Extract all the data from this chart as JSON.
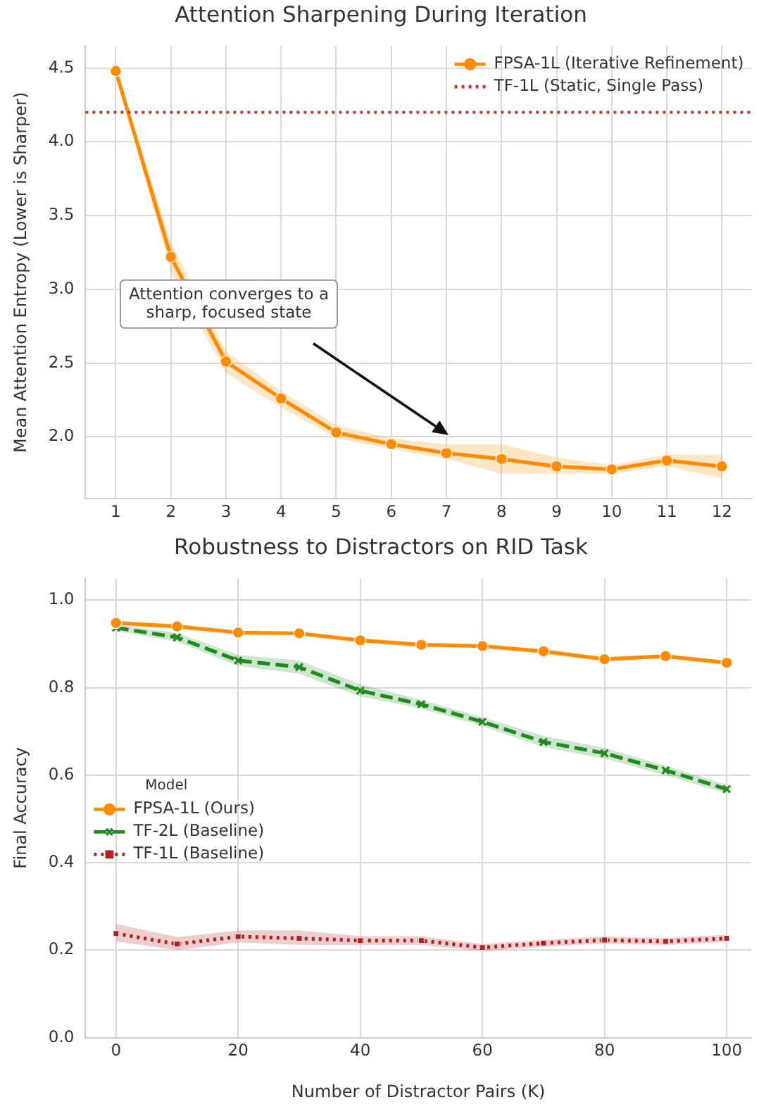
{
  "chart_data": [
    {
      "type": "line",
      "title": "Attention Sharpening During Iteration",
      "ylabel": "Mean Attention Entropy (Lower is Sharper)",
      "x": [
        1,
        2,
        3,
        4,
        5,
        6,
        7,
        8,
        9,
        10,
        11,
        12
      ],
      "xlim": [
        0.45,
        12.55
      ],
      "xticks": [
        1,
        2,
        3,
        4,
        5,
        6,
        7,
        8,
        9,
        10,
        11,
        12
      ],
      "ylim": [
        1.58,
        4.65
      ],
      "yticks": [
        {
          "value": 2,
          "label": "2.0"
        },
        2.5,
        {
          "value": 3,
          "label": "3.0"
        },
        3.5,
        {
          "value": 4,
          "label": "4.0"
        },
        4.5
      ],
      "series": [
        {
          "name": "FPSA-1L (Iterative Refinement)",
          "color": "#ff8c00",
          "marker": "circle",
          "line_style": "solid",
          "values": [
            4.48,
            3.22,
            2.51,
            2.26,
            2.03,
            1.95,
            1.89,
            1.85,
            1.8,
            1.78,
            1.84,
            1.8
          ],
          "lower": [
            4.47,
            3.12,
            2.43,
            2.2,
            1.99,
            1.92,
            1.85,
            1.75,
            1.75,
            1.75,
            1.8,
            1.72
          ],
          "upper": [
            4.49,
            3.32,
            2.58,
            2.31,
            2.08,
            1.99,
            1.95,
            1.95,
            1.86,
            1.81,
            1.88,
            1.88
          ]
        }
      ],
      "ref_lines": [
        {
          "axis": "y",
          "value": 4.2,
          "label": "TF-1L (Static, Single Pass)",
          "color": "#c0392b",
          "line_style": "dotted"
        }
      ],
      "annotations": [
        "Attention converges to a\nsharp, focused state"
      ],
      "legend": "top right",
      "grid": true
    },
    {
      "type": "line",
      "title": "Robustness to Distractors on RID Task",
      "xlabel": "Number of Distractor Pairs (K)",
      "ylabel": "Final Accuracy",
      "legend_title": "Model",
      "x": [
        0,
        10,
        20,
        30,
        40,
        50,
        60,
        70,
        80,
        90,
        100
      ],
      "xlim": [
        -5,
        104
      ],
      "xticks": [
        0,
        20,
        40,
        60,
        80,
        100
      ],
      "ylim": [
        0,
        1.05
      ],
      "yticks": [
        {
          "value": 0,
          "label": "0.0"
        },
        0.2,
        0.4,
        0.6,
        0.8,
        {
          "value": 1,
          "label": "1.0"
        }
      ],
      "series": [
        {
          "name": "FPSA-1L (Ours)",
          "color": "#ff8c00",
          "marker": "circle",
          "line_style": "solid",
          "values": [
            0.948,
            0.94,
            0.926,
            0.924,
            0.908,
            0.898,
            0.895,
            0.883,
            0.865,
            0.872,
            0.857
          ],
          "lower": [
            0.943,
            0.935,
            0.921,
            0.919,
            0.903,
            0.893,
            0.89,
            0.878,
            0.86,
            0.867,
            0.852
          ],
          "upper": [
            0.953,
            0.945,
            0.931,
            0.929,
            0.913,
            0.903,
            0.9,
            0.888,
            0.87,
            0.877,
            0.862
          ]
        },
        {
          "name": "TF-2L (Baseline)",
          "color": "#228b22",
          "marker": "cross",
          "line_style": "dashed",
          "values": [
            0.937,
            0.915,
            0.862,
            0.847,
            0.793,
            0.762,
            0.722,
            0.676,
            0.65,
            0.611,
            0.568
          ],
          "lower": [
            0.93,
            0.905,
            0.85,
            0.832,
            0.78,
            0.752,
            0.712,
            0.664,
            0.638,
            0.6,
            0.558
          ],
          "upper": [
            0.944,
            0.925,
            0.875,
            0.862,
            0.808,
            0.772,
            0.732,
            0.69,
            0.662,
            0.622,
            0.578
          ]
        },
        {
          "name": "TF-1L (Baseline)",
          "color": "#b22222",
          "marker": "square",
          "line_style": "dotted",
          "values": [
            0.238,
            0.214,
            0.231,
            0.227,
            0.222,
            0.222,
            0.206,
            0.216,
            0.223,
            0.22,
            0.227
          ],
          "lower": [
            0.22,
            0.2,
            0.218,
            0.212,
            0.212,
            0.212,
            0.198,
            0.208,
            0.215,
            0.212,
            0.219
          ],
          "upper": [
            0.26,
            0.23,
            0.245,
            0.245,
            0.232,
            0.232,
            0.214,
            0.224,
            0.231,
            0.228,
            0.235
          ]
        }
      ],
      "legend": "center left",
      "grid": true
    }
  ]
}
